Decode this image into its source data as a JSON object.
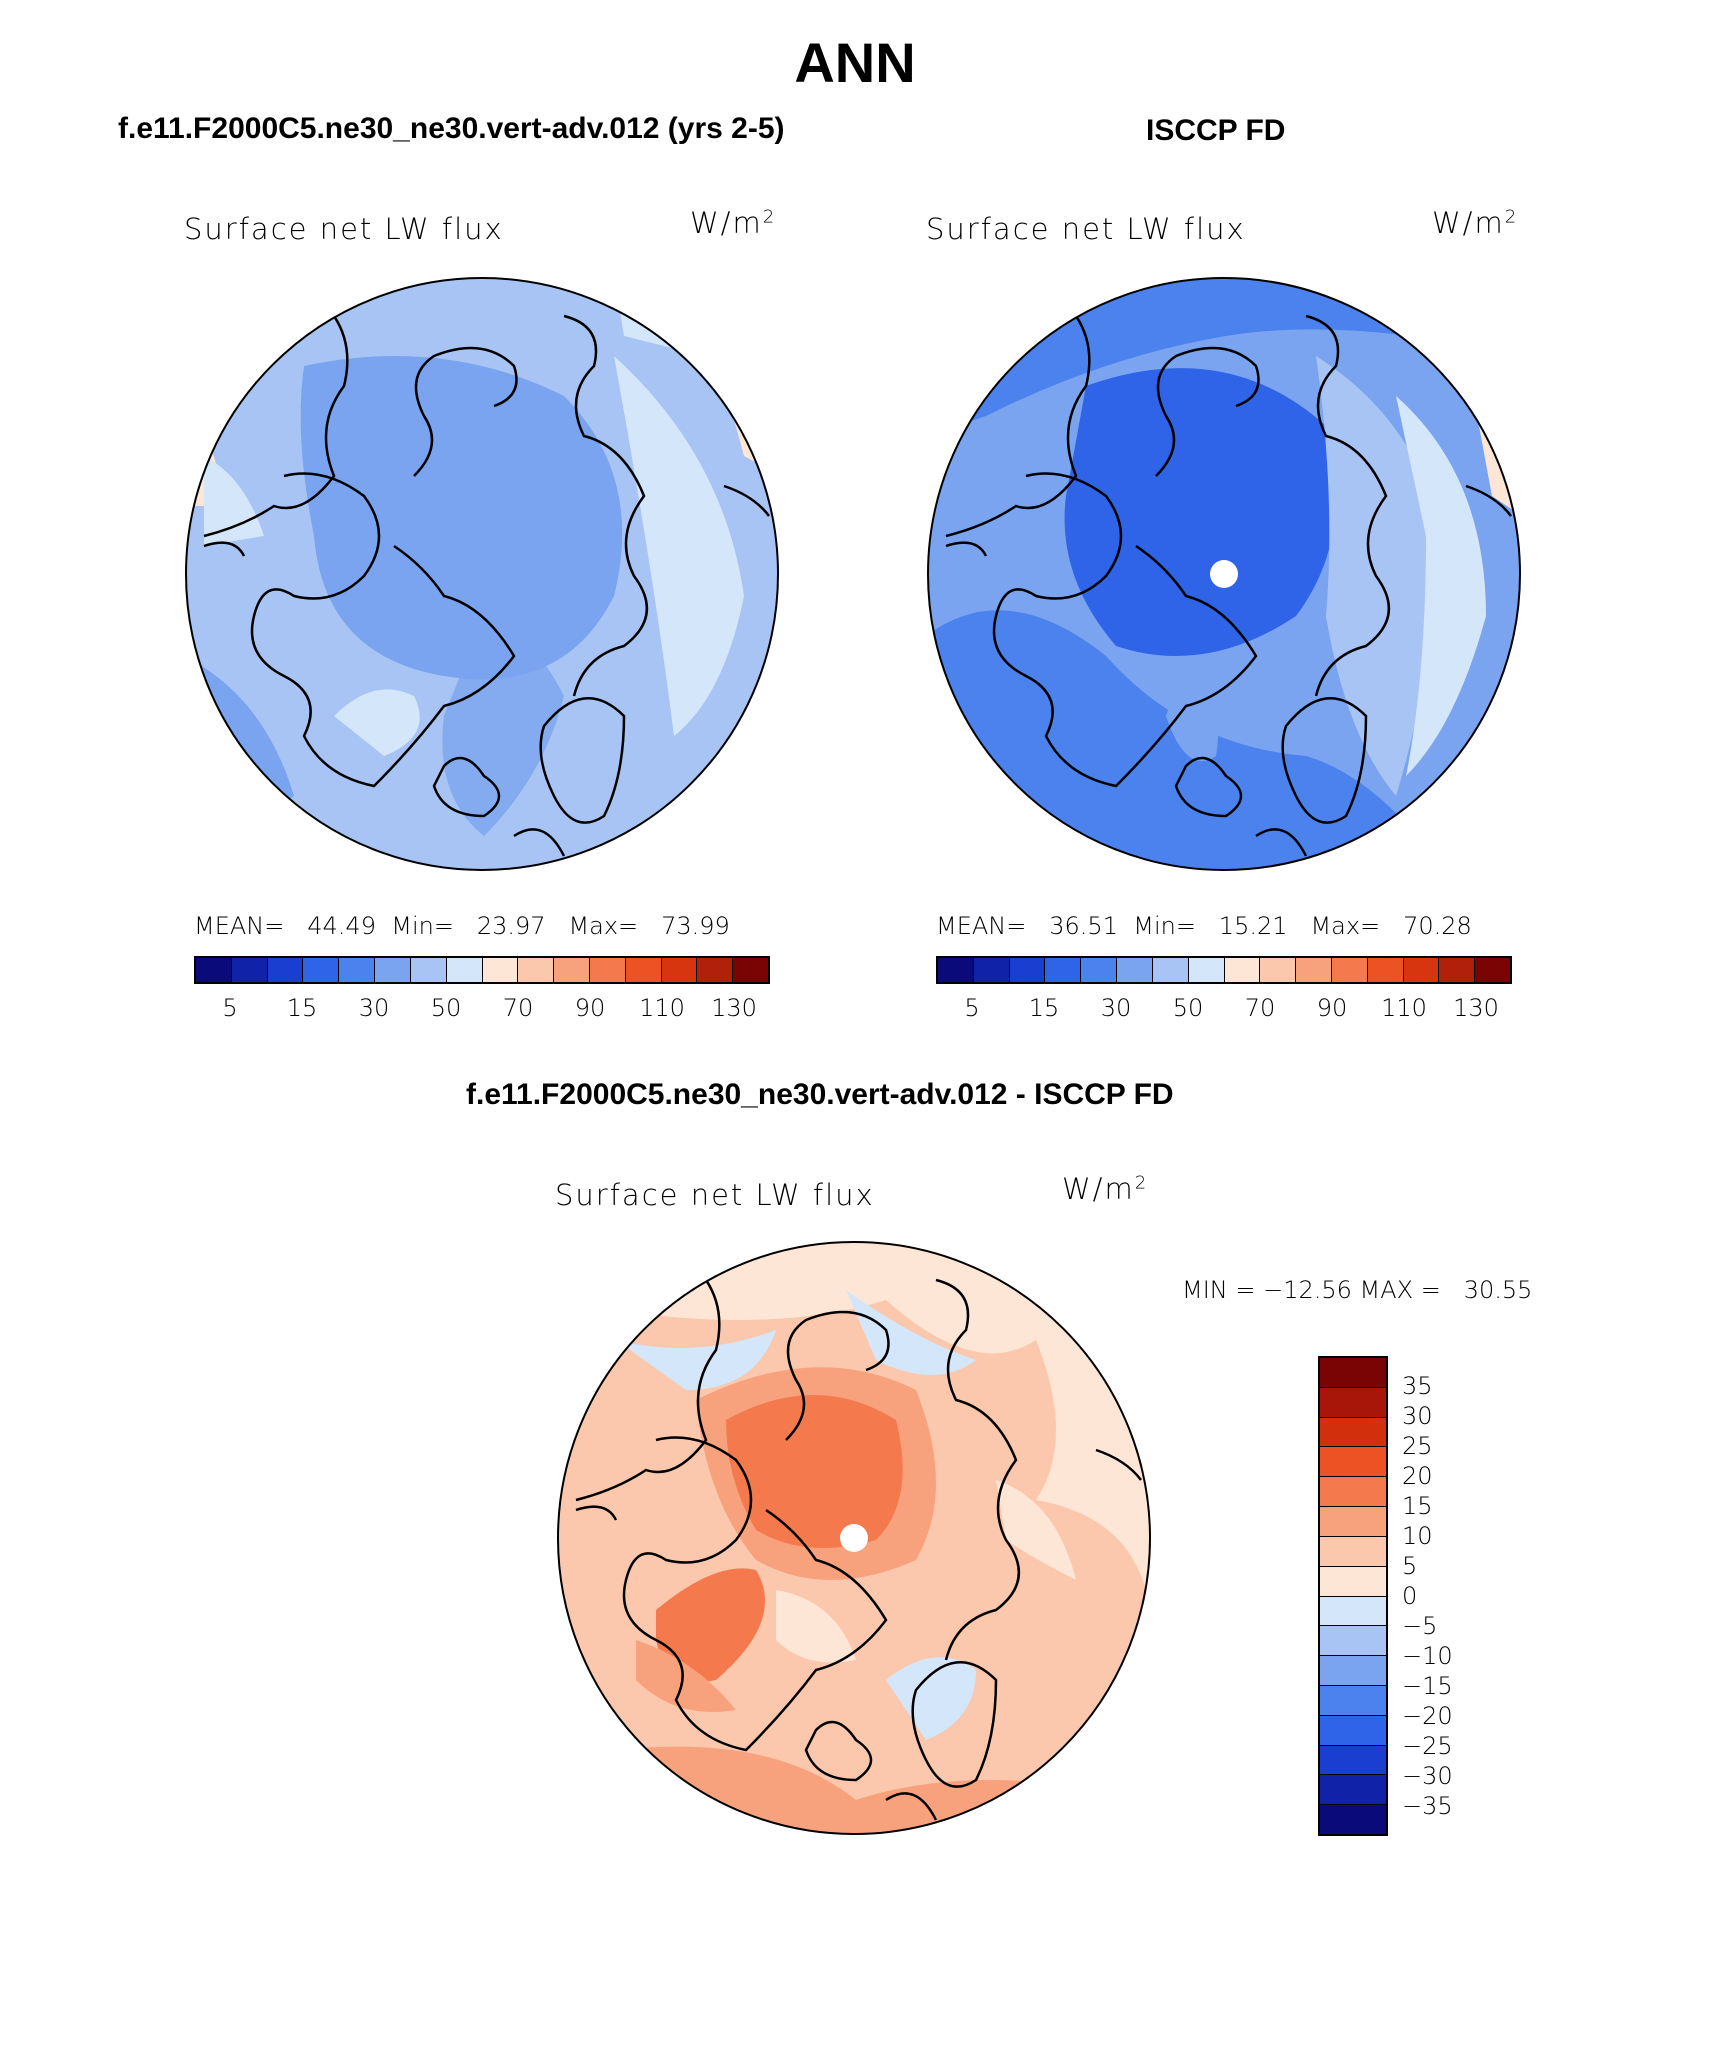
{
  "title": "ANN",
  "panels": [
    {
      "title": "f.e11.F2000C5.ne30_ne30.vert-adv.012 (yrs 2-5)",
      "field": "Surface net LW flux",
      "units_base": "W/m",
      "units_exp": "2",
      "mean_label": "MEAN=",
      "mean": "44.49",
      "min_label": "Min=",
      "min": "23.97",
      "max_label": "Max=",
      "max": "73.99",
      "cbar_ticks": [
        "5",
        "15",
        "30",
        "50",
        "70",
        "90",
        "110",
        "130"
      ]
    },
    {
      "title": "ISCCP FD",
      "field": "Surface net LW flux",
      "units_base": "W/m",
      "units_exp": "2",
      "mean_label": "MEAN=",
      "mean": "36.51",
      "min_label": "Min=",
      "min": "15.21",
      "max_label": "Max=",
      "max": "70.28",
      "cbar_ticks": [
        "5",
        "15",
        "30",
        "50",
        "70",
        "90",
        "110",
        "130"
      ]
    }
  ],
  "diff": {
    "title": "f.e11.F2000C5.ne30_ne30.vert-adv.012 - ISCCP FD",
    "field": "Surface net LW flux",
    "units_base": "W/m",
    "units_exp": "2",
    "minmax": "MIN = −12.56 MAX =   30.55",
    "cbar_ticks": [
      "35",
      "30",
      "25",
      "20",
      "15",
      "10",
      "5",
      "0",
      "−5",
      "−10",
      "−15",
      "−20",
      "−25",
      "−30",
      "−35"
    ]
  },
  "colors": {
    "abs_scale": [
      "#0a0a7a",
      "#1022a8",
      "#1a3fd0",
      "#2f63e8",
      "#4c82ee",
      "#7aa4ef",
      "#a8c4f4",
      "#d4e6fa",
      "#fde6d6",
      "#fbc8ad",
      "#f8a27d",
      "#f47a4e",
      "#ec5224",
      "#d7350f",
      "#b0200a",
      "#7a0404"
    ],
    "diff_scale": [
      "#7a0404",
      "#a8160a",
      "#d2300d",
      "#ec5224",
      "#f47a4e",
      "#f8a27d",
      "#fbc8ad",
      "#fde6d6",
      "#d4e6fa",
      "#a8c4f4",
      "#7aa4ef",
      "#4c82ee",
      "#2f63e8",
      "#1a3fd0",
      "#1022a8",
      "#0a0a7a"
    ]
  }
}
